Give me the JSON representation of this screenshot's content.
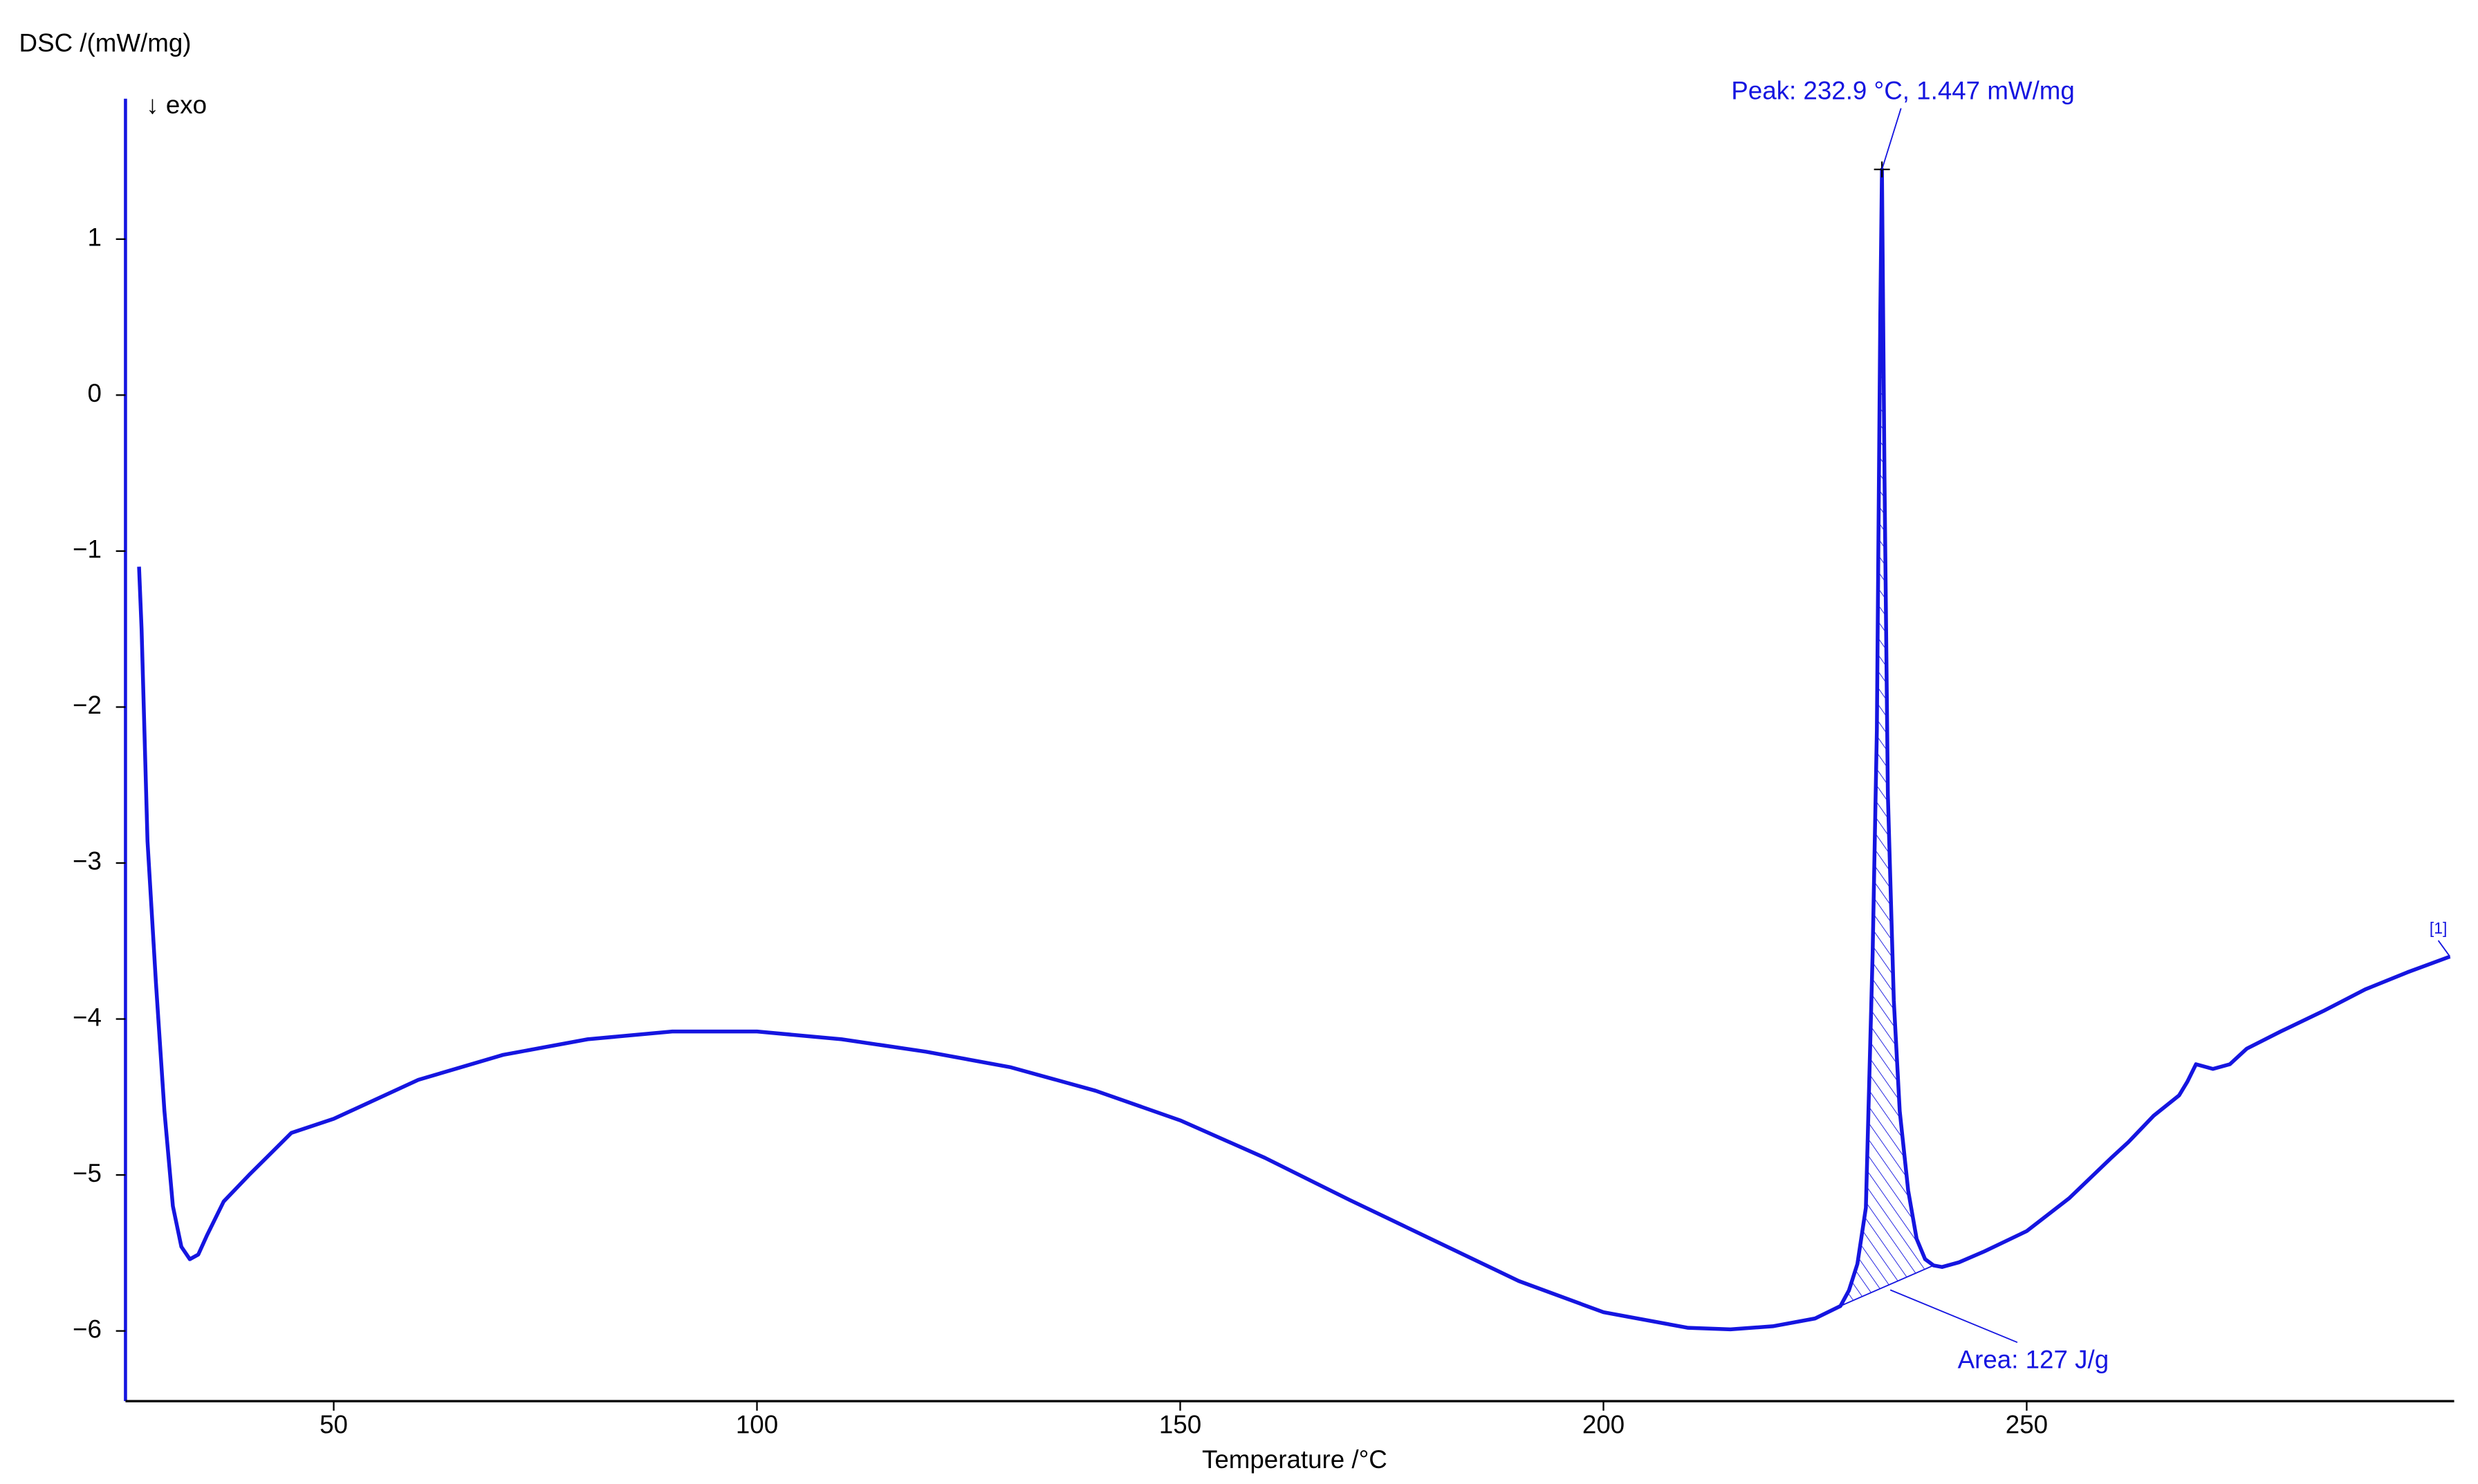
{
  "chart_data": {
    "type": "line",
    "ylabel": "DSC /(mW/mg)",
    "xlabel": "Temperature /°C",
    "direction_note": "↓ exo",
    "annotations": [
      "Peak: 232.9 °C, 1.447 mW/mg",
      "Area: 127 J/g",
      "[1]"
    ],
    "xlim": [
      25.4,
      300.5
    ],
    "ylim": [
      -6.45,
      1.9
    ],
    "xticks": [
      50,
      100,
      150,
      200,
      250
    ],
    "yticks": [
      1,
      0,
      {
        "value": -1,
        "label": "−1"
      },
      {
        "value": -2,
        "label": "−2"
      },
      {
        "value": -3,
        "label": "−3"
      },
      {
        "value": -4,
        "label": "−4"
      },
      {
        "value": -5,
        "label": "−5"
      },
      {
        "value": -6,
        "label": "−6"
      }
    ],
    "x": [
      27,
      27.3,
      28,
      29,
      30,
      31,
      32,
      33,
      34,
      35,
      37,
      40,
      45,
      50,
      60,
      70,
      80,
      90,
      100,
      110,
      120,
      130,
      140,
      150,
      160,
      170,
      180,
      190,
      200,
      210,
      215,
      220,
      225,
      228,
      229,
      230,
      231,
      231.8,
      232.3,
      232.7,
      232.9,
      233.2,
      233.6,
      234.3,
      235,
      236,
      237,
      238,
      239,
      240,
      242,
      245,
      250,
      255,
      260,
      262,
      265,
      268,
      269,
      270,
      272,
      274,
      276,
      280,
      285,
      290,
      295,
      300
    ],
    "series": [
      {
        "name": "[1]",
        "color": "#1515e0",
        "values": [
          -1.1,
          -1.5,
          -2.86,
          -3.77,
          -4.59,
          -5.2,
          -5.46,
          -5.54,
          -5.51,
          -5.39,
          -5.17,
          -5.0,
          -4.73,
          -4.64,
          -4.39,
          -4.23,
          -4.13,
          -4.08,
          -4.08,
          -4.13,
          -4.21,
          -4.31,
          -4.46,
          -4.65,
          -4.89,
          -5.16,
          -5.42,
          -5.68,
          -5.88,
          -5.98,
          -5.99,
          -5.97,
          -5.92,
          -5.84,
          -5.74,
          -5.57,
          -5.21,
          -3.58,
          -2.15,
          0.5,
          1.447,
          -0.52,
          -2.56,
          -3.88,
          -4.59,
          -5.1,
          -5.41,
          -5.54,
          -5.58,
          -5.59,
          -5.56,
          -5.49,
          -5.36,
          -5.15,
          -4.89,
          -4.79,
          -4.62,
          -4.49,
          -4.4,
          -4.29,
          -4.32,
          -4.29,
          -4.19,
          -4.08,
          -3.95,
          -3.81,
          -3.7,
          -3.6
        ]
      }
    ]
  }
}
